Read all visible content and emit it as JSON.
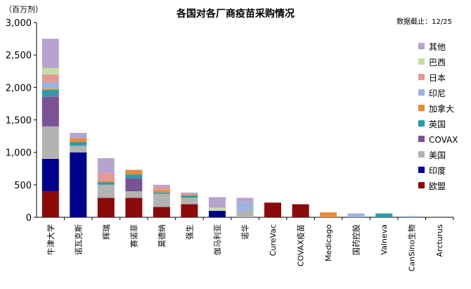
{
  "chart_data": {
    "type": "bar",
    "stacked": true,
    "title": "各国对各厂商疫苗采购情况",
    "unit_label": "（百万剂）",
    "note": "数据截止：12/25",
    "ylim": [
      0,
      3000
    ],
    "yticks": [
      "0",
      "500",
      "1,000",
      "1,500",
      "2,000",
      "2,500",
      "3,000"
    ],
    "legend_position": "right",
    "categories": [
      "牛津大学",
      "诺瓦克斯",
      "辉瑞",
      "赛诺菲",
      "莫德纳",
      "强生",
      "伽马利亚",
      "诺华",
      "CureVac",
      "COVAX疫苗",
      "Medicago",
      "国药控股",
      "Valneva",
      "CanSino生物",
      "Arcturus"
    ],
    "series": [
      {
        "name": "欧盟",
        "color": "#8B0A0A",
        "values": [
          400,
          0,
          300,
          300,
          160,
          200,
          0,
          0,
          225,
          200,
          0,
          0,
          0,
          0,
          0
        ]
      },
      {
        "name": "印度",
        "color": "#00008B",
        "values": [
          500,
          1000,
          0,
          0,
          0,
          0,
          100,
          0,
          0,
          0,
          0,
          0,
          0,
          0,
          0
        ]
      },
      {
        "name": "美国",
        "color": "#B3B3B3",
        "values": [
          500,
          100,
          200,
          100,
          200,
          100,
          0,
          100,
          0,
          0,
          0,
          0,
          0,
          0,
          0
        ]
      },
      {
        "name": "COVAX",
        "color": "#7A5396",
        "values": [
          460,
          0,
          0,
          200,
          0,
          0,
          0,
          0,
          0,
          0,
          0,
          0,
          0,
          0,
          0
        ]
      },
      {
        "name": "英国",
        "color": "#2E9BA6",
        "values": [
          100,
          60,
          40,
          60,
          20,
          30,
          0,
          0,
          0,
          0,
          0,
          0,
          60,
          0,
          0
        ]
      },
      {
        "name": "加拿大",
        "color": "#E48C3C",
        "values": [
          20,
          60,
          20,
          70,
          40,
          20,
          0,
          0,
          0,
          0,
          76,
          0,
          0,
          0,
          0
        ]
      },
      {
        "name": "印尼",
        "color": "#9DB3DF",
        "values": [
          100,
          0,
          0,
          0,
          0,
          0,
          0,
          130,
          0,
          0,
          0,
          60,
          0,
          20,
          0
        ]
      },
      {
        "name": "日本",
        "color": "#E29A97",
        "values": [
          120,
          0,
          120,
          0,
          50,
          0,
          0,
          0,
          0,
          0,
          0,
          0,
          0,
          0,
          0
        ]
      },
      {
        "name": "巴西",
        "color": "#C6DDA4",
        "values": [
          100,
          0,
          0,
          0,
          0,
          0,
          50,
          0,
          0,
          0,
          0,
          0,
          0,
          0,
          0
        ]
      },
      {
        "name": "其他",
        "color": "#B7A4CE",
        "values": [
          450,
          80,
          230,
          0,
          30,
          30,
          160,
          70,
          0,
          0,
          0,
          0,
          0,
          0,
          0
        ]
      }
    ]
  }
}
